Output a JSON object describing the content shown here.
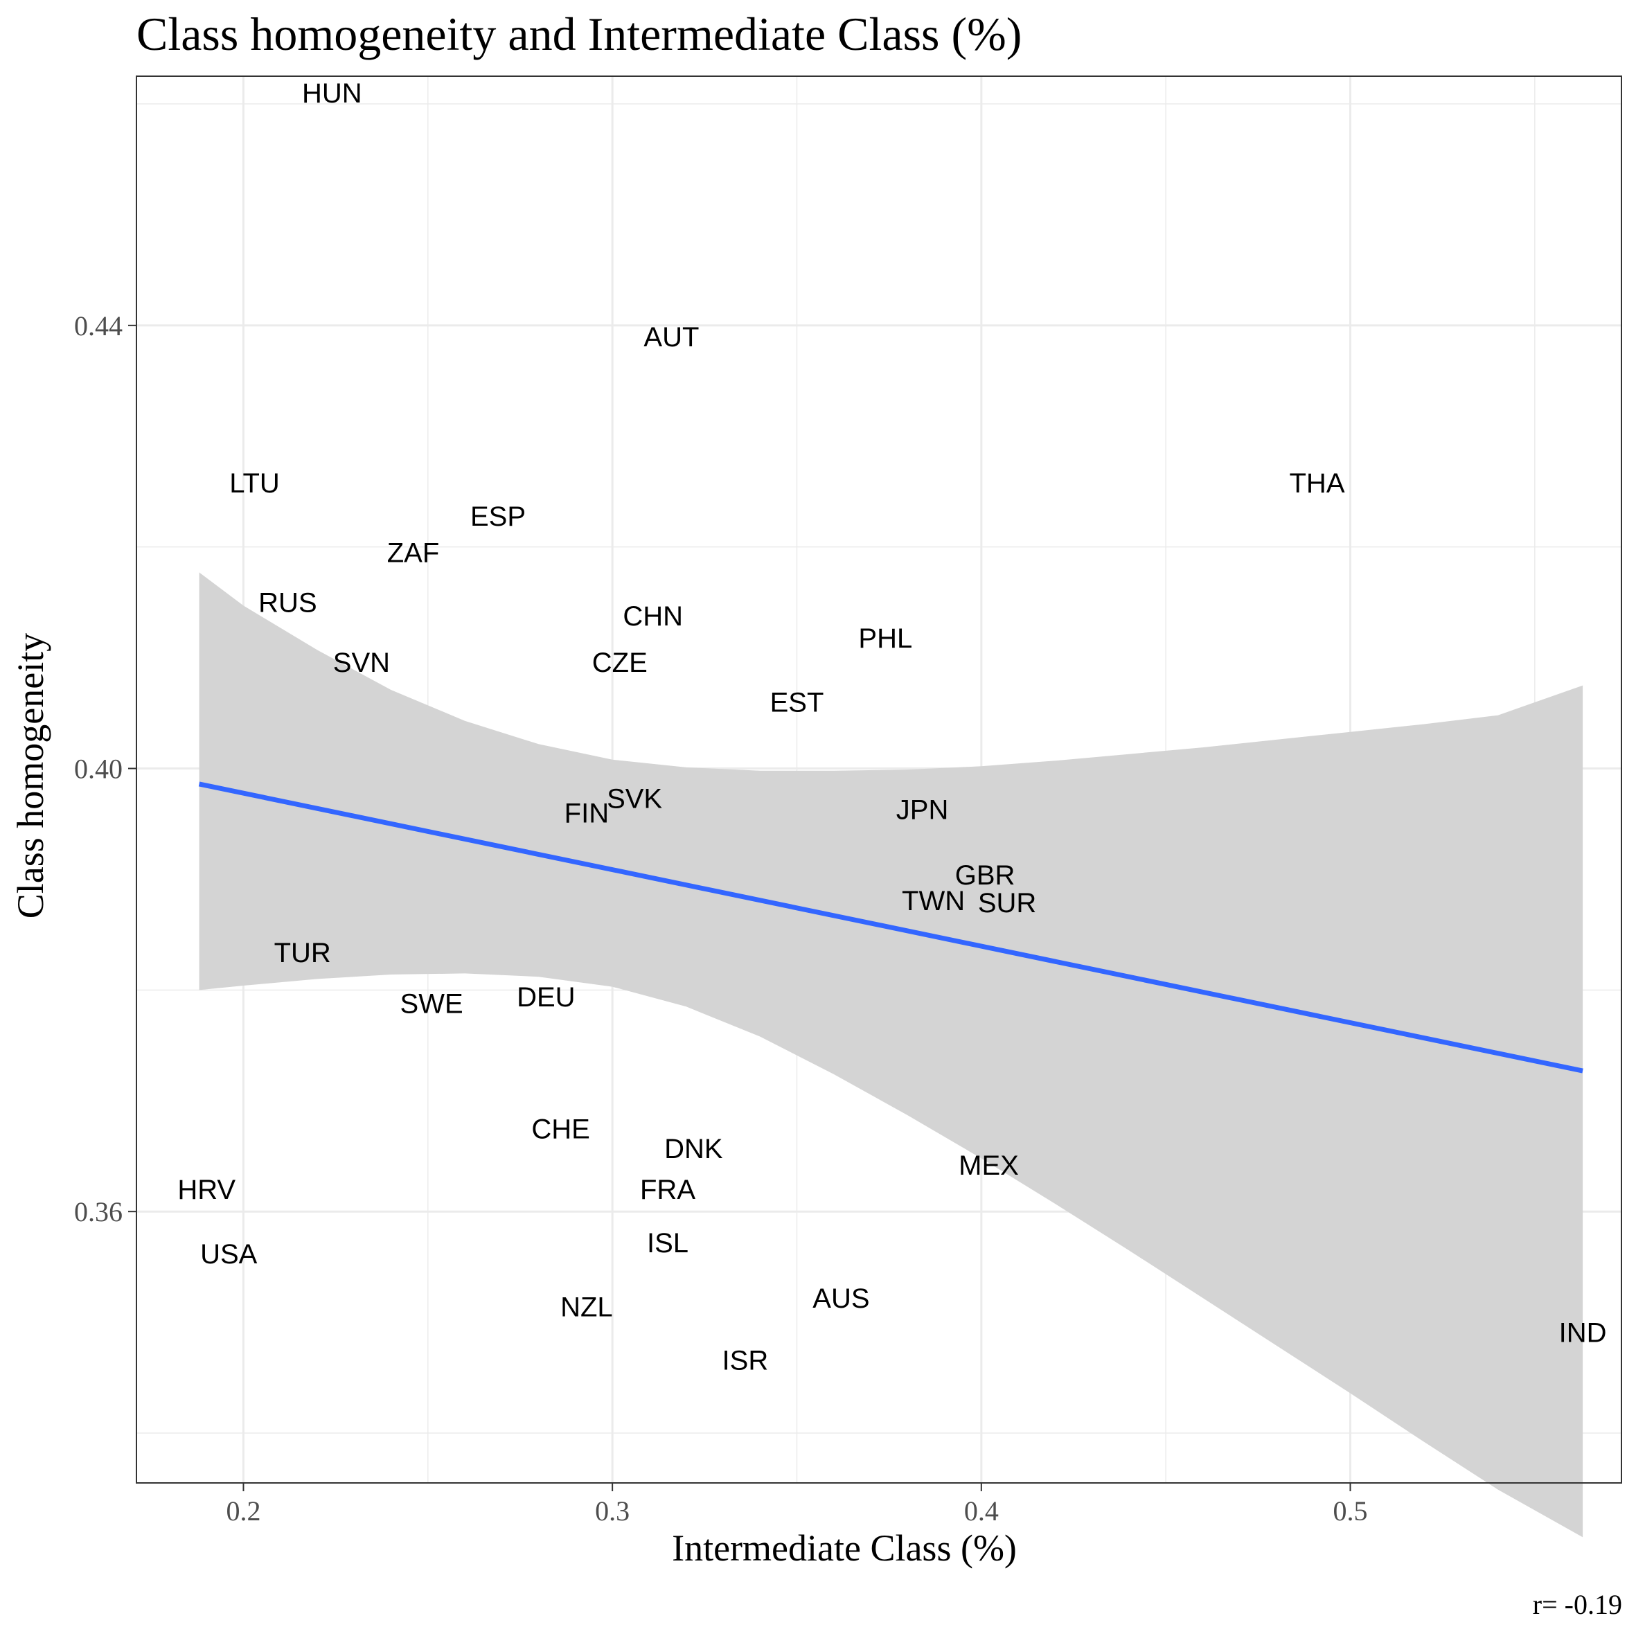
{
  "chart_data": {
    "type": "scatter",
    "title": "Class homogeneity and Intermediate Class (%)",
    "xlabel": "Intermediate Class (%)",
    "ylabel": "Class homogeneity",
    "xlim": [
      0.171,
      0.5735
    ],
    "ylim": [
      0.3355,
      0.4625
    ],
    "x_ticks": [
      0.2,
      0.3,
      0.4,
      0.5
    ],
    "x_tick_labels": [
      "0.2",
      "0.3",
      "0.4",
      "0.5"
    ],
    "x_minor_ticks": [
      0.25,
      0.35,
      0.45,
      0.55
    ],
    "y_ticks": [
      0.36,
      0.4,
      0.44
    ],
    "y_tick_labels": [
      "0.36",
      "0.40",
      "0.44"
    ],
    "y_minor_ticks": [
      0.34,
      0.38,
      0.42,
      0.46
    ],
    "grid": true,
    "points": [
      {
        "label": "HUN",
        "x": 0.224,
        "y": 0.461
      },
      {
        "label": "AUT",
        "x": 0.316,
        "y": 0.439
      },
      {
        "label": "LTU",
        "x": 0.203,
        "y": 0.4258
      },
      {
        "label": "THA",
        "x": 0.491,
        "y": 0.4258
      },
      {
        "label": "ESP",
        "x": 0.269,
        "y": 0.4228
      },
      {
        "label": "ZAF",
        "x": 0.246,
        "y": 0.4195
      },
      {
        "label": "RUS",
        "x": 0.212,
        "y": 0.415
      },
      {
        "label": "CHN",
        "x": 0.311,
        "y": 0.4138
      },
      {
        "label": "PHL",
        "x": 0.374,
        "y": 0.4118
      },
      {
        "label": "SVN",
        "x": 0.232,
        "y": 0.4096
      },
      {
        "label": "CZE",
        "x": 0.302,
        "y": 0.4096
      },
      {
        "label": "EST",
        "x": 0.35,
        "y": 0.406
      },
      {
        "label": "SVK",
        "x": 0.306,
        "y": 0.3973
      },
      {
        "label": "FIN",
        "x": 0.293,
        "y": 0.396
      },
      {
        "label": "JPN",
        "x": 0.384,
        "y": 0.3963
      },
      {
        "label": "GBR",
        "x": 0.401,
        "y": 0.3904
      },
      {
        "label": "TWN",
        "x": 0.387,
        "y": 0.3881
      },
      {
        "label": "SUR",
        "x": 0.407,
        "y": 0.3879
      },
      {
        "label": "TUR",
        "x": 0.216,
        "y": 0.3834
      },
      {
        "label": "SWE",
        "x": 0.251,
        "y": 0.3788
      },
      {
        "label": "DEU",
        "x": 0.282,
        "y": 0.3794
      },
      {
        "label": "CHE",
        "x": 0.286,
        "y": 0.3675
      },
      {
        "label": "DNK",
        "x": 0.322,
        "y": 0.3657
      },
      {
        "label": "MEX",
        "x": 0.402,
        "y": 0.3642
      },
      {
        "label": "HRV",
        "x": 0.19,
        "y": 0.362
      },
      {
        "label": "FRA",
        "x": 0.315,
        "y": 0.362
      },
      {
        "label": "USA",
        "x": 0.196,
        "y": 0.3562
      },
      {
        "label": "ISL",
        "x": 0.315,
        "y": 0.3572
      },
      {
        "label": "AUS",
        "x": 0.362,
        "y": 0.3522
      },
      {
        "label": "NZL",
        "x": 0.293,
        "y": 0.3514
      },
      {
        "label": "IND",
        "x": 0.563,
        "y": 0.3491
      },
      {
        "label": "ISR",
        "x": 0.336,
        "y": 0.3466
      }
    ],
    "regression": {
      "x": [
        0.188,
        0.563
      ],
      "y": [
        0.3986,
        0.3727
      ],
      "color": "#3366FF",
      "band_color": "#d4d4d4",
      "band": [
        {
          "x": 0.188,
          "lo": 0.38,
          "hi": 0.4177
        },
        {
          "x": 0.2,
          "lo": 0.3804,
          "hi": 0.4147
        },
        {
          "x": 0.22,
          "lo": 0.381,
          "hi": 0.4107
        },
        {
          "x": 0.24,
          "lo": 0.3814,
          "hi": 0.4071
        },
        {
          "x": 0.26,
          "lo": 0.3815,
          "hi": 0.4043
        },
        {
          "x": 0.28,
          "lo": 0.3812,
          "hi": 0.4022
        },
        {
          "x": 0.3,
          "lo": 0.3803,
          "hi": 0.4008
        },
        {
          "x": 0.32,
          "lo": 0.3785,
          "hi": 0.4001
        },
        {
          "x": 0.34,
          "lo": 0.3758,
          "hi": 0.3998
        },
        {
          "x": 0.36,
          "lo": 0.3724,
          "hi": 0.3998
        },
        {
          "x": 0.38,
          "lo": 0.3687,
          "hi": 0.3999
        },
        {
          "x": 0.4,
          "lo": 0.3648,
          "hi": 0.4002
        },
        {
          "x": 0.42,
          "lo": 0.3607,
          "hi": 0.4007
        },
        {
          "x": 0.44,
          "lo": 0.3565,
          "hi": 0.4013
        },
        {
          "x": 0.46,
          "lo": 0.3522,
          "hi": 0.4019
        },
        {
          "x": 0.48,
          "lo": 0.3479,
          "hi": 0.4026
        },
        {
          "x": 0.5,
          "lo": 0.3436,
          "hi": 0.4033
        },
        {
          "x": 0.52,
          "lo": 0.3392,
          "hi": 0.404
        },
        {
          "x": 0.54,
          "lo": 0.3349,
          "hi": 0.4048
        },
        {
          "x": 0.563,
          "lo": 0.3306,
          "hi": 0.4075
        }
      ]
    },
    "annotation": "r= -0.19"
  }
}
